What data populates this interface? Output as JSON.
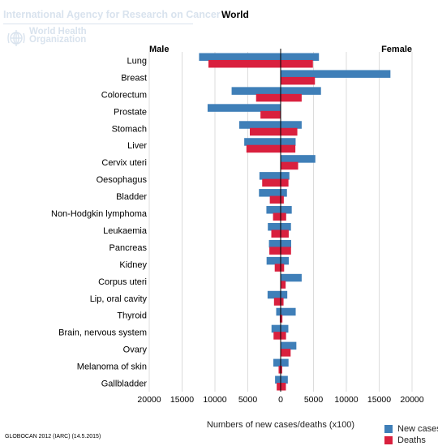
{
  "header": {
    "agency": "International Agency for Research on Cancer",
    "region": "World",
    "who_line1": "World Health",
    "who_line2": "Organization"
  },
  "footer": {
    "source": "GLOBOCAN 2012 (IARC) (14.5.2015)"
  },
  "colors": {
    "new_cases": "#3f7fb8",
    "deaths": "#d9203e"
  },
  "chart_data": {
    "type": "bar",
    "orientation": "horizontal",
    "layout": "population-pyramid",
    "left_label": "Male",
    "right_label": "Female",
    "xlabel": "Numbers of new cases/deaths (x100)",
    "xlim": [
      -20000,
      20000
    ],
    "x_ticks": [
      -20000,
      -15000,
      -10000,
      -5000,
      0,
      5000,
      10000,
      15000,
      20000
    ],
    "x_tick_labels": [
      "20000",
      "15000",
      "10000",
      "5000",
      "0",
      "5000",
      "10000",
      "15000",
      "20000"
    ],
    "grid": "vertical",
    "legend": "bottom-right",
    "categories": [
      "Lung",
      "Breast",
      "Colorectum",
      "Prostate",
      "Stomach",
      "Liver",
      "Cervix uteri",
      "Oesophagus",
      "Bladder",
      "Non-Hodgkin lymphoma",
      "Leukaemia",
      "Pancreas",
      "Kidney",
      "Corpus uteri",
      "Lip, oral cavity",
      "Thyroid",
      "Brain, nervous system",
      "Ovary",
      "Melanoma of skin",
      "Gallbladder"
    ],
    "series": [
      {
        "name": "New cases",
        "group": "Male",
        "values": [
          12420,
          0,
          7460,
          11120,
          6310,
          5540,
          0,
          3230,
          3300,
          2170,
          1950,
          1780,
          2140,
          0,
          1990,
          680,
          1390,
          0,
          1110,
          850
        ]
      },
      {
        "name": "Deaths",
        "group": "Male",
        "values": [
          10990,
          0,
          3740,
          3070,
          4690,
          5210,
          0,
          2810,
          1650,
          1160,
          1420,
          1720,
          900,
          0,
          1010,
          130,
          1080,
          0,
          310,
          600
        ]
      },
      {
        "name": "New cases",
        "group": "Female",
        "values": [
          5830,
          16710,
          6140,
          0,
          3200,
          2280,
          5280,
          1330,
          960,
          1690,
          1570,
          1600,
          1240,
          3200,
          1010,
          2290,
          1170,
          2390,
          1200,
          1090
        ]
      },
      {
        "name": "Deaths",
        "group": "Female",
        "values": [
          4910,
          5220,
          3200,
          0,
          2540,
          2240,
          2660,
          1190,
          480,
          840,
          1230,
          1580,
          530,
          760,
          440,
          270,
          820,
          1520,
          240,
          800
        ]
      }
    ]
  }
}
